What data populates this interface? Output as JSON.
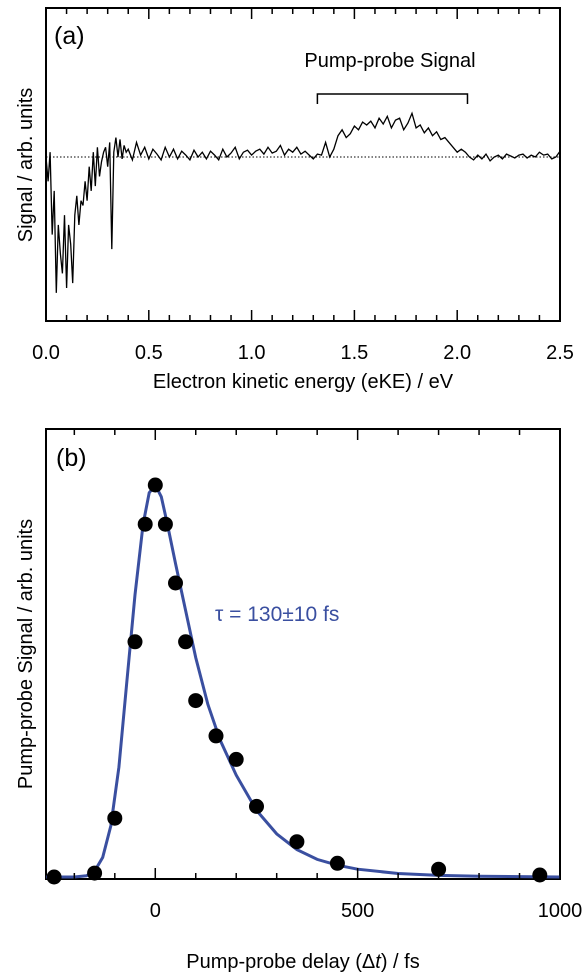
{
  "chart_data": [
    {
      "type": "line",
      "panel_label": "(a)",
      "xlabel": "Electron kinetic energy (eKE) / eV",
      "ylabel": "Signal / arb. units",
      "xlim": [
        0.0,
        2.5
      ],
      "x_ticks": [
        "0.0",
        "0.5",
        "1.0",
        "1.5",
        "2.0",
        "2.5"
      ],
      "y_ticks_labeled": false,
      "baseline": {
        "style": "dotted",
        "y": 0
      },
      "annotation": {
        "text": "Pump-probe Signal",
        "x_range": [
          1.32,
          2.05
        ]
      },
      "series": [
        {
          "x": [
            0.0,
            0.01,
            0.02,
            0.03,
            0.04,
            0.05,
            0.06,
            0.07,
            0.08,
            0.09,
            0.1,
            0.11,
            0.12,
            0.13,
            0.14,
            0.15,
            0.16,
            0.17,
            0.18,
            0.19,
            0.2,
            0.21,
            0.22,
            0.23,
            0.24,
            0.25,
            0.26,
            0.27,
            0.28,
            0.29,
            0.3,
            0.31,
            0.32,
            0.33,
            0.34,
            0.35,
            0.36,
            0.37,
            0.38,
            0.39,
            0.4,
            0.42,
            0.44,
            0.46,
            0.48,
            0.5,
            0.52,
            0.54,
            0.56,
            0.58,
            0.6,
            0.62,
            0.64,
            0.66,
            0.68,
            0.7,
            0.72,
            0.74,
            0.76,
            0.78,
            0.8,
            0.82,
            0.84,
            0.86,
            0.88,
            0.9,
            0.92,
            0.94,
            0.96,
            0.98,
            1.0,
            1.02,
            1.04,
            1.06,
            1.08,
            1.1,
            1.12,
            1.14,
            1.16,
            1.18,
            1.2,
            1.22,
            1.24,
            1.26,
            1.28,
            1.3,
            1.32,
            1.34,
            1.36,
            1.38,
            1.4,
            1.42,
            1.44,
            1.46,
            1.48,
            1.5,
            1.52,
            1.54,
            1.56,
            1.58,
            1.6,
            1.62,
            1.64,
            1.66,
            1.68,
            1.7,
            1.72,
            1.74,
            1.76,
            1.78,
            1.8,
            1.82,
            1.84,
            1.86,
            1.88,
            1.9,
            1.92,
            1.94,
            1.96,
            1.98,
            2.0,
            2.02,
            2.04,
            2.06,
            2.08,
            2.1,
            2.12,
            2.14,
            2.16,
            2.18,
            2.2,
            2.22,
            2.24,
            2.26,
            2.28,
            2.3,
            2.32,
            2.34,
            2.36,
            2.38,
            2.4,
            2.42,
            2.44,
            2.46,
            2.48,
            2.5
          ],
          "y": [
            0.0,
            -0.25,
            0.05,
            -0.8,
            -0.35,
            -1.4,
            -0.7,
            -1.0,
            -1.2,
            -0.6,
            -1.35,
            -0.7,
            -0.9,
            -1.3,
            -0.6,
            -0.4,
            -0.7,
            -0.45,
            -0.5,
            -0.25,
            -0.45,
            -0.1,
            -0.35,
            0.05,
            -0.3,
            0.1,
            -0.2,
            -0.05,
            0.05,
            0.1,
            -0.1,
            0.15,
            -0.95,
            0.05,
            0.2,
            0.0,
            0.18,
            -0.02,
            0.12,
            0.05,
            0.08,
            -0.03,
            0.15,
            0.02,
            0.1,
            -0.02,
            0.08,
            0.03,
            -0.03,
            0.1,
            0.0,
            0.08,
            -0.02,
            0.06,
            0.02,
            -0.03,
            0.07,
            0.0,
            0.05,
            -0.02,
            0.06,
            0.02,
            -0.03,
            0.08,
            0.0,
            0.04,
            0.1,
            -0.02,
            0.05,
            0.07,
            0.02,
            0.06,
            0.08,
            0.03,
            0.1,
            0.04,
            0.06,
            0.12,
            0.02,
            0.08,
            0.05,
            0.1,
            0.03,
            0.06,
            0.02,
            -0.02,
            0.03,
            0.02,
            0.15,
            0.0,
            0.08,
            0.22,
            0.28,
            0.2,
            0.24,
            0.32,
            0.28,
            0.36,
            0.33,
            0.37,
            0.3,
            0.4,
            0.34,
            0.42,
            0.3,
            0.38,
            0.4,
            0.28,
            0.35,
            0.45,
            0.3,
            0.33,
            0.25,
            0.3,
            0.22,
            0.26,
            0.18,
            0.2,
            0.15,
            0.1,
            0.05,
            0.08,
            0.05,
            0.0,
            -0.03,
            0.02,
            -0.02,
            0.03,
            -0.04,
            0.0,
            0.02,
            -0.02,
            0.03,
            0.01,
            -0.01,
            0.02,
            0.03,
            -0.01,
            0.02,
            0.0,
            0.05,
            0.02,
            0.03,
            -0.02,
            0.0,
            0.06
          ]
        }
      ]
    },
    {
      "type": "scatter",
      "panel_label": "(b)",
      "xlabel_parts": [
        "Pump-probe delay (Δ",
        "t",
        ") / fs"
      ],
      "ylabel": "Pump-probe Signal / arb. units",
      "xlim": [
        -270,
        1000
      ],
      "x_ticks": [
        0,
        500,
        1000
      ],
      "y_ticks_labeled": false,
      "ylim": [
        0,
        1.0
      ],
      "colors": {
        "points": "#000000",
        "fit": "#3a4fa0"
      },
      "annotation": {
        "text": "τ = 130±10 fs",
        "color": "#3a4fa0"
      },
      "series": [
        {
          "type": "scatter",
          "x": [
            -250,
            -150,
            -100,
            -50,
            -25,
            0,
            25,
            50,
            75,
            100,
            150,
            200,
            250,
            350,
            450,
            700,
            950
          ],
          "y": [
            0.0,
            0.01,
            0.15,
            0.6,
            0.9,
            1.0,
            0.9,
            0.75,
            0.6,
            0.45,
            0.36,
            0.3,
            0.18,
            0.09,
            0.035,
            0.02,
            0.005
          ]
        },
        {
          "type": "line",
          "x": [
            -270,
            -200,
            -170,
            -150,
            -130,
            -110,
            -90,
            -70,
            -50,
            -30,
            -15,
            0,
            15,
            30,
            50,
            75,
            100,
            130,
            160,
            200,
            250,
            300,
            350,
            400,
            450,
            500,
            600,
            700,
            800,
            900,
            1000
          ],
          "y": [
            0.0,
            0.0,
            0.003,
            0.015,
            0.05,
            0.13,
            0.28,
            0.5,
            0.72,
            0.9,
            0.98,
            1.0,
            0.97,
            0.9,
            0.8,
            0.68,
            0.56,
            0.44,
            0.35,
            0.26,
            0.17,
            0.11,
            0.07,
            0.045,
            0.03,
            0.02,
            0.009,
            0.004,
            0.002,
            0.001,
            0.0
          ]
        }
      ]
    }
  ]
}
